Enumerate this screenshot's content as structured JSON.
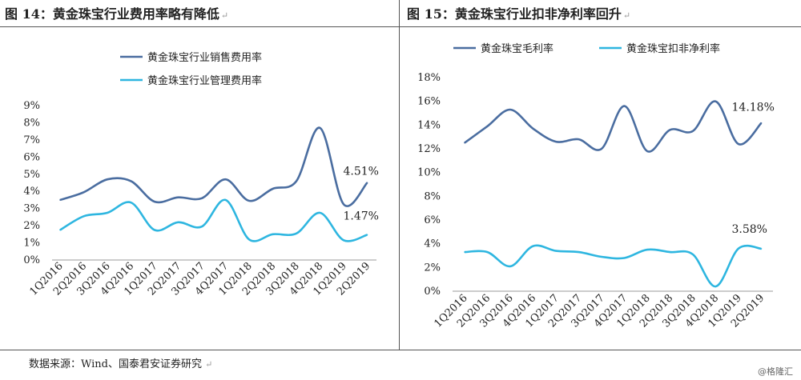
{
  "left_title": "图 14：黄金珠宝行业费用率略有降低",
  "right_title": "图 15：黄金珠宝行业扣非净利率回升",
  "title_mark": "↵",
  "source": "数据来源：Wind、国泰君安证券研究",
  "watermark": "@格隆汇",
  "colors": {
    "dark": "#4a6da0",
    "light": "#2eb6e0",
    "grid": "#555555"
  },
  "chart_data": [
    {
      "type": "line",
      "title": "图 14：黄金珠宝行业费用率略有降低",
      "categories": [
        "1Q2016",
        "2Q2016",
        "3Q2016",
        "4Q2016",
        "1Q2017",
        "2Q2017",
        "3Q2017",
        "4Q2017",
        "1Q2018",
        "2Q2018",
        "3Q2018",
        "4Q2018",
        "1Q2019",
        "2Q2019"
      ],
      "yticks": [
        "0%",
        "1%",
        "2%",
        "3%",
        "4%",
        "5%",
        "6%",
        "7%",
        "8%",
        "9%"
      ],
      "ylim": [
        0,
        9
      ],
      "legend_position": "top",
      "grid": false,
      "series": [
        {
          "name": "黄金珠宝行业销售费用率",
          "color": "#4a6da0",
          "values": [
            3.5,
            3.95,
            4.7,
            4.6,
            3.4,
            3.65,
            3.6,
            4.7,
            3.45,
            4.15,
            4.6,
            7.7,
            3.25,
            4.51
          ],
          "end_label": "4.51%"
        },
        {
          "name": "黄金珠宝行业管理费用率",
          "color": "#2eb6e0",
          "values": [
            1.75,
            2.55,
            2.75,
            3.35,
            1.75,
            2.2,
            1.95,
            3.5,
            1.2,
            1.5,
            1.55,
            2.75,
            1.15,
            1.47
          ],
          "end_label": "1.47%"
        }
      ]
    },
    {
      "type": "line",
      "title": "图 15：黄金珠宝行业扣非净利率回升",
      "categories": [
        "1Q2016",
        "2Q2016",
        "3Q2016",
        "4Q2016",
        "1Q2017",
        "2Q2017",
        "3Q2017",
        "4Q2017",
        "1Q2018",
        "2Q2018",
        "3Q2018",
        "4Q2018",
        "1Q2019",
        "2Q2019"
      ],
      "yticks": [
        "0%",
        "2%",
        "4%",
        "6%",
        "8%",
        "10%",
        "12%",
        "14%",
        "16%",
        "18%"
      ],
      "ylim": [
        0,
        18
      ],
      "legend_position": "top",
      "grid": false,
      "series": [
        {
          "name": "黄金珠宝毛利率",
          "color": "#4a6da0",
          "values": [
            12.5,
            13.9,
            15.3,
            13.7,
            12.6,
            12.8,
            12.0,
            15.6,
            11.8,
            13.6,
            13.5,
            16.0,
            12.4,
            14.18
          ],
          "end_label": "14.18%"
        },
        {
          "name": "黄金珠宝扣非净利率",
          "color": "#2eb6e0",
          "values": [
            3.3,
            3.3,
            2.1,
            3.8,
            3.4,
            3.3,
            2.9,
            2.8,
            3.5,
            3.3,
            3.1,
            0.4,
            3.6,
            3.58
          ],
          "end_label": "3.58%"
        }
      ]
    }
  ]
}
